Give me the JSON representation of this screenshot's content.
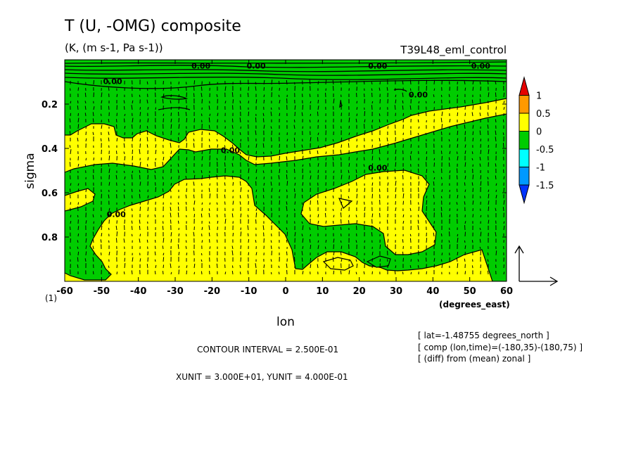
{
  "title": "T (U, -OMG) composite",
  "units": "(K, (m s-1, Pa s-1))",
  "experiment": "T39L48_eml_control",
  "chart_data": {
    "type": "contour",
    "xlabel": "lon",
    "xunit_label": "(degrees_east)",
    "ylabel": "sigma",
    "x_ticks": [
      -60,
      -50,
      -40,
      -30,
      -20,
      -10,
      0,
      10,
      20,
      30,
      40,
      50,
      60
    ],
    "x_tick_labels": [
      "-60",
      "-50",
      "-40",
      "-30",
      "-20",
      "-10",
      "0",
      "10",
      "20",
      "30",
      "40",
      "50",
      "60"
    ],
    "y_ticks": [
      0.2,
      0.4,
      0.6,
      0.8
    ],
    "y_tick_labels": [
      "0.2",
      "0.4",
      "0.6",
      "0.8"
    ],
    "bottom_left_label": "(1)",
    "xlim": [
      -60,
      60
    ],
    "ylim": [
      1.0,
      0.0
    ],
    "y_inverted": true,
    "contour_levels": [
      -1.5,
      -1,
      -0.5,
      0,
      0.5,
      1
    ],
    "colorbar_labels": [
      "1",
      "0.5",
      "0",
      "-0.5",
      "-1",
      "-1.5"
    ],
    "colorbar_colors": [
      "#e60000",
      "#ff9900",
      "#ffff00",
      "#00cc00",
      "#00ffff",
      "#0099ff",
      "#0033ff"
    ],
    "fill_colors": {
      "positive": "#ffff00",
      "negative": "#00cc00"
    },
    "contour_label_text": "0.00",
    "contour_labels": [
      {
        "lon": -47,
        "sigma": 0.11
      },
      {
        "lon": -23,
        "sigma": 0.04
      },
      {
        "lon": -8,
        "sigma": 0.04
      },
      {
        "lon": 36,
        "sigma": 0.17
      },
      {
        "lon": -15,
        "sigma": 0.42
      },
      {
        "lon": 25,
        "sigma": 0.5
      },
      {
        "lon": -46,
        "sigma": 0.71
      },
      {
        "lon": 25,
        "sigma": 0.04
      },
      {
        "lon": 53,
        "sigma": 0.04
      }
    ],
    "vector_field": "U, -OMG",
    "reference_vector": "arrow at lower right (XUNIT/YUNIT)"
  },
  "annotations": {
    "contour_interval": "CONTOUR INTERVAL = 2.500E-01",
    "units_line": "XUNIT = 3.000E+01, YUNIT = 4.000E-01",
    "info": [
      "[ lat=-1.48755 degrees_north ]",
      "[ comp (lon,time)=(-180,35)-(180,75) ]",
      "[ (diff) from (mean) zonal ]"
    ]
  }
}
